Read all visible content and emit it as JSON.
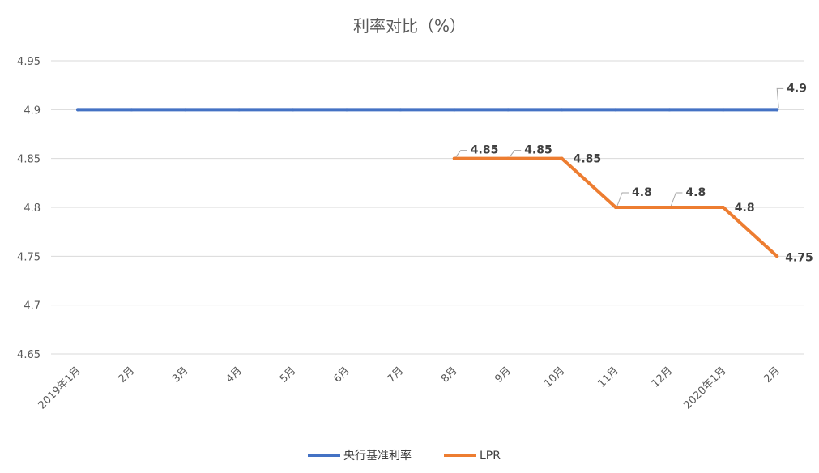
{
  "chart_data": {
    "type": "line",
    "title": "利率对比（%）",
    "categories": [
      "2019年1月",
      "2月",
      "3月",
      "4月",
      "5月",
      "6月",
      "7月",
      "8月",
      "9月",
      "10月",
      "11月",
      "12月",
      "2020年1月",
      "2月"
    ],
    "ylim": [
      4.65,
      4.95
    ],
    "yticks": [
      "4.65",
      "4.7",
      "4.75",
      "4.8",
      "4.85",
      "4.9",
      "4.95"
    ],
    "grid": true,
    "legend_position": "bottom",
    "series": [
      {
        "name": "央行基准利率",
        "color": "#4472C4",
        "values": [
          4.9,
          4.9,
          4.9,
          4.9,
          4.9,
          4.9,
          4.9,
          4.9,
          4.9,
          4.9,
          4.9,
          4.9,
          4.9,
          4.9
        ],
        "data_labels": [
          {
            "index": 13,
            "text": "4.9"
          }
        ]
      },
      {
        "name": "LPR",
        "color": "#ED7D31",
        "values": [
          null,
          null,
          null,
          null,
          null,
          null,
          null,
          4.85,
          4.85,
          4.85,
          4.8,
          4.8,
          4.8,
          4.75
        ],
        "data_labels": [
          {
            "index": 7,
            "text": "4.85"
          },
          {
            "index": 8,
            "text": "4.85"
          },
          {
            "index": 9,
            "text": "4.85"
          },
          {
            "index": 10,
            "text": "4.8"
          },
          {
            "index": 11,
            "text": "4.8"
          },
          {
            "index": 12,
            "text": "4.8"
          },
          {
            "index": 13,
            "text": "4.75"
          }
        ]
      }
    ]
  }
}
